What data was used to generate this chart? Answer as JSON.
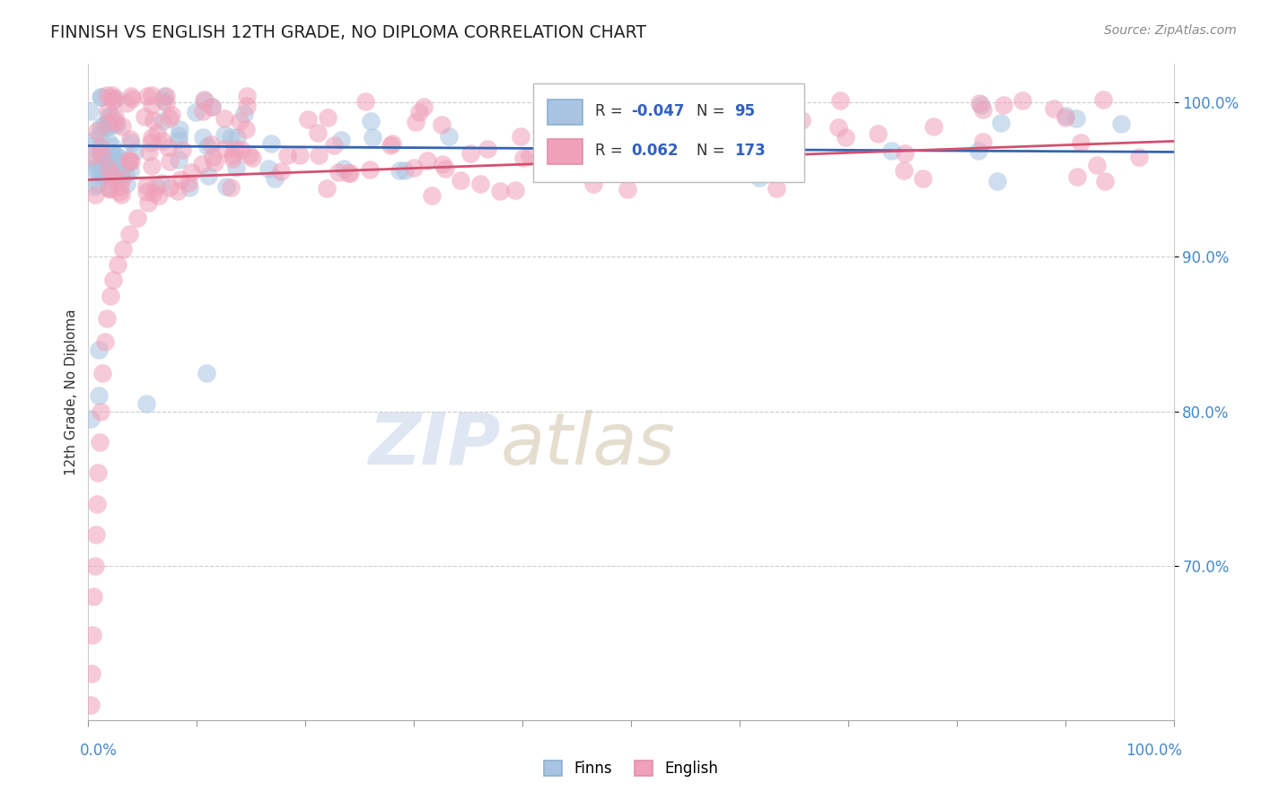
{
  "title": "FINNISH VS ENGLISH 12TH GRADE, NO DIPLOMA CORRELATION CHART",
  "source_text": "Source: ZipAtlas.com",
  "ylabel": "12th Grade, No Diploma",
  "legend_label_1": "Finns",
  "legend_label_2": "English",
  "R_finns": -0.047,
  "N_finns": 95,
  "R_english": 0.062,
  "N_english": 173,
  "color_finns": "#a8c4e0",
  "color_english": "#f0a0b8",
  "color_trendline_finns": "#3464b4",
  "color_trendline_english": "#d45070",
  "background_color": "#ffffff",
  "grid_color": "#cccccc",
  "xmin": 0.0,
  "xmax": 100.0,
  "ymin": 60.0,
  "ymax": 102.5,
  "ytick_vals": [
    70.0,
    80.0,
    90.0,
    100.0
  ],
  "ytick_labels": [
    "70.0%",
    "80.0%",
    "90.0%",
    "100.0%"
  ],
  "watermark_zip_color": "#c8d8ea",
  "watermark_atlas_color": "#d0c8b8",
  "legend_box_color": "#f5f5f5",
  "legend_r_color": "#3060c0",
  "title_color": "#222222",
  "source_color": "#888888",
  "axis_label_color": "#333333",
  "tick_color": "#4488cc"
}
